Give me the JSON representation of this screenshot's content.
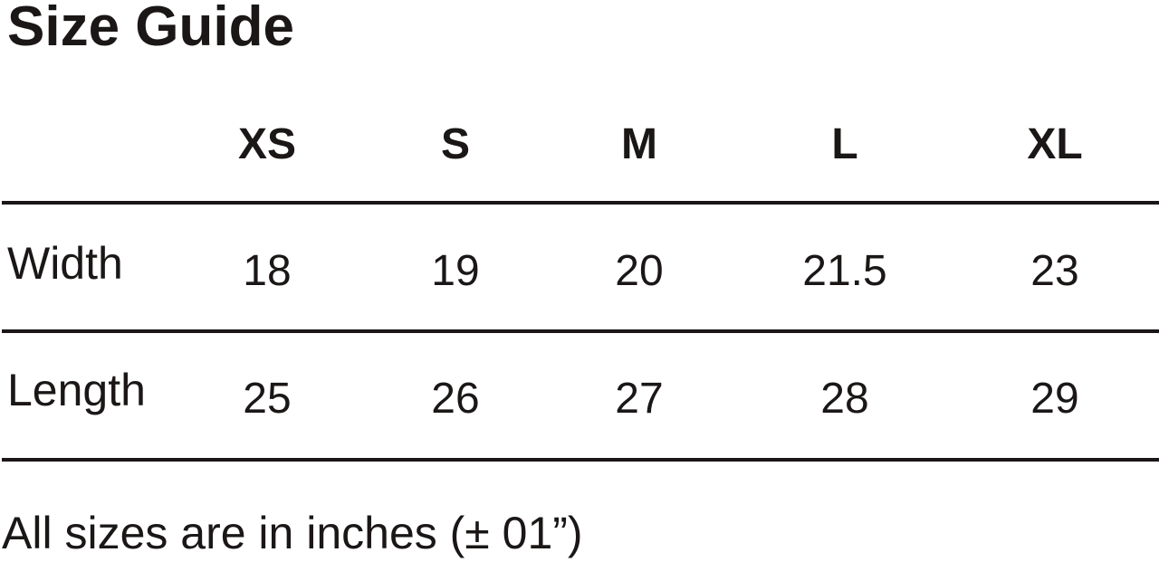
{
  "title": "Size Guide",
  "columns": [
    "XS",
    "S",
    "M",
    "L",
    "XL"
  ],
  "rows": [
    {
      "label": "Width",
      "values": [
        "18",
        "19",
        "20",
        "21.5",
        "23"
      ]
    },
    {
      "label": "Length",
      "values": [
        "25",
        "26",
        "27",
        "28",
        "29"
      ]
    }
  ],
  "footnote": "All sizes are in inches (± 01”)"
}
